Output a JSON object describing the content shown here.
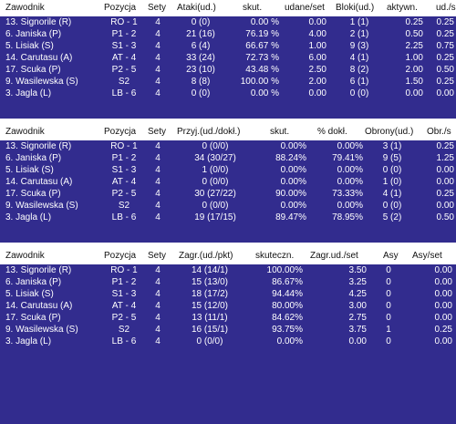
{
  "table1": {
    "columns": [
      "Zawodnik",
      "Pozycja",
      "Sety",
      "Ataki(ud.)",
      "skut.",
      "udane/set",
      "Bloki(ud.)",
      "aktywn.",
      "ud./s"
    ],
    "rows": [
      [
        "13. Signorile (R)",
        "RO - 1",
        "4",
        "0 (0)",
        "0.00 %",
        "0.00",
        "1 (1)",
        "0.25",
        "0.25"
      ],
      [
        "6. Janiska (P)",
        "P1 - 2",
        "4",
        "21 (16)",
        "76.19 %",
        "4.00",
        "2 (1)",
        "0.50",
        "0.25"
      ],
      [
        "5. Lisiak (S)",
        "S1 - 3",
        "4",
        "6 (4)",
        "66.67 %",
        "1.00",
        "9 (3)",
        "2.25",
        "0.75"
      ],
      [
        "14. Carutasu (A)",
        "AT - 4",
        "4",
        "33 (24)",
        "72.73 %",
        "6.00",
        "4 (1)",
        "1.00",
        "0.25"
      ],
      [
        "17. Scuka (P)",
        "P2 - 5",
        "4",
        "23 (10)",
        "43.48 %",
        "2.50",
        "8 (2)",
        "2.00",
        "0.50"
      ],
      [
        "9. Wasilewska (S)",
        "S2",
        "4",
        "8 (8)",
        "100.00 %",
        "2.00",
        "6 (1)",
        "1.50",
        "0.25"
      ],
      [
        "3. Jagla (L)",
        "LB - 6",
        "4",
        "0 (0)",
        "0.00 %",
        "0.00",
        "0 (0)",
        "0.00",
        "0.00"
      ]
    ]
  },
  "table2": {
    "columns": [
      "Zawodnik",
      "Pozycja",
      "Sety",
      "Przyj.(ud./dokł.)",
      "skut.",
      "% dokł.",
      "Obrony(ud.)",
      "Obr./s"
    ],
    "rows": [
      [
        "13. Signorile (R)",
        "RO - 1",
        "4",
        "0 (0/0)",
        "0.00%",
        "0.00%",
        "3 (1)",
        "0.25"
      ],
      [
        "6. Janiska (P)",
        "P1 - 2",
        "4",
        "34 (30/27)",
        "88.24%",
        "79.41%",
        "9 (5)",
        "1.25"
      ],
      [
        "5. Lisiak (S)",
        "S1 - 3",
        "4",
        "1 (0/0)",
        "0.00%",
        "0.00%",
        "0 (0)",
        "0.00"
      ],
      [
        "14. Carutasu (A)",
        "AT - 4",
        "4",
        "0 (0/0)",
        "0.00%",
        "0.00%",
        "1 (0)",
        "0.00"
      ],
      [
        "17. Scuka (P)",
        "P2 - 5",
        "4",
        "30 (27/22)",
        "90.00%",
        "73.33%",
        "4 (1)",
        "0.25"
      ],
      [
        "9. Wasilewska (S)",
        "S2",
        "4",
        "0 (0/0)",
        "0.00%",
        "0.00%",
        "0 (0)",
        "0.00"
      ],
      [
        "3. Jagla (L)",
        "LB - 6",
        "4",
        "19 (17/15)",
        "89.47%",
        "78.95%",
        "5 (2)",
        "0.50"
      ]
    ]
  },
  "table3": {
    "columns": [
      "Zawodnik",
      "Pozycja",
      "Sety",
      "Zagr.(ud./pkt)",
      "skuteczn.",
      "Zagr.ud./set",
      "Asy",
      "Asy/set"
    ],
    "rows": [
      [
        "13. Signorile (R)",
        "RO - 1",
        "4",
        "14 (14/1)",
        "100.00%",
        "3.50",
        "0",
        "0.00"
      ],
      [
        "6. Janiska (P)",
        "P1 - 2",
        "4",
        "15 (13/0)",
        "86.67%",
        "3.25",
        "0",
        "0.00"
      ],
      [
        "5. Lisiak (S)",
        "S1 - 3",
        "4",
        "18 (17/2)",
        "94.44%",
        "4.25",
        "0",
        "0.00"
      ],
      [
        "14. Carutasu (A)",
        "AT - 4",
        "4",
        "15 (12/0)",
        "80.00%",
        "3.00",
        "0",
        "0.00"
      ],
      [
        "17. Scuka (P)",
        "P2 - 5",
        "4",
        "13 (11/1)",
        "84.62%",
        "2.75",
        "0",
        "0.00"
      ],
      [
        "9. Wasilewska (S)",
        "S2",
        "4",
        "16 (15/1)",
        "93.75%",
        "3.75",
        "1",
        "0.25"
      ],
      [
        "3. Jagla (L)",
        "LB - 6",
        "4",
        "0 (0/0)",
        "0.00%",
        "0.00",
        "0",
        "0.00"
      ]
    ]
  }
}
